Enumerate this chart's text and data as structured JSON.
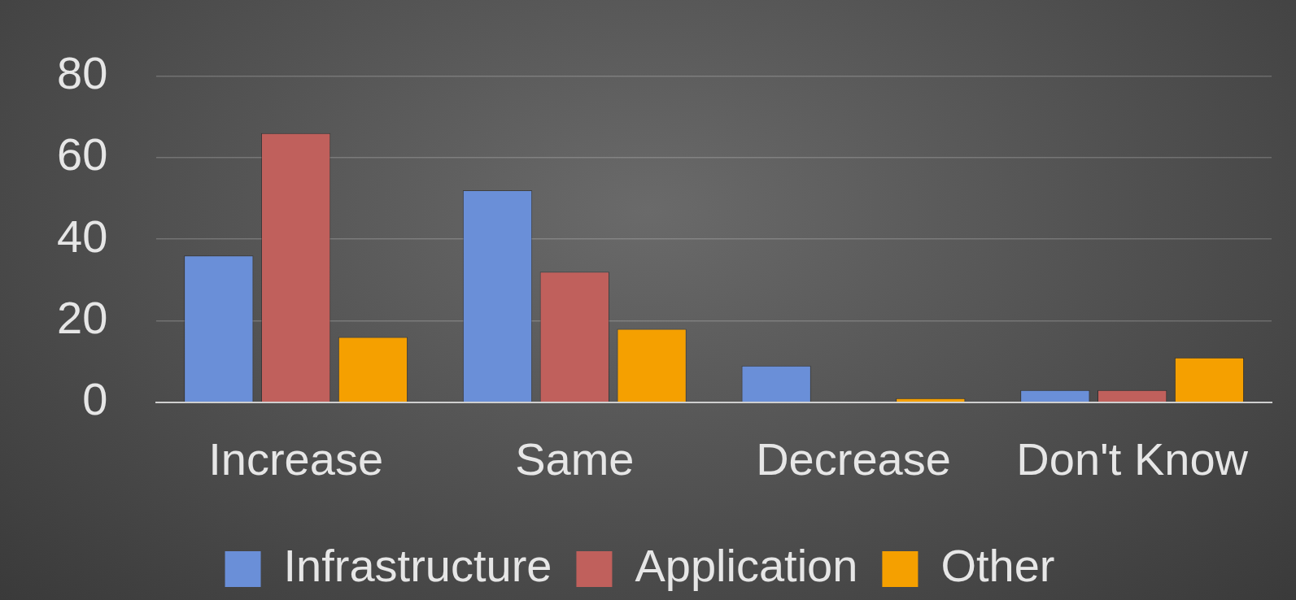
{
  "chart_data": {
    "type": "bar",
    "categories": [
      "Increase",
      "Same",
      "Decrease",
      "Don't Know"
    ],
    "series": [
      {
        "name": "Infrastructure",
        "color": "#6a8fd8",
        "values": [
          36,
          52,
          9,
          3
        ]
      },
      {
        "name": "Application",
        "color": "#c0605c",
        "values": [
          66,
          32,
          0,
          3
        ]
      },
      {
        "name": "Other",
        "color": "#f5a000",
        "values": [
          16,
          18,
          1,
          11
        ]
      }
    ],
    "ylim": [
      0,
      80
    ],
    "yticks": [
      0,
      20,
      40,
      60,
      80
    ],
    "grid": "y",
    "legend": "bottom"
  }
}
